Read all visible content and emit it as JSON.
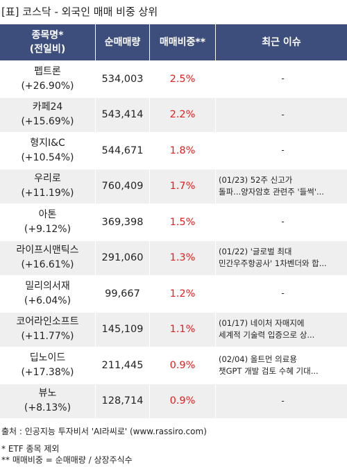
{
  "title": "[표] 코스닥 - 외국인 매매 비중 상위",
  "headers": {
    "name_line1": "종목명*",
    "name_line2": "(전일비)",
    "volume": "순매매량",
    "ratio": "매매비중**",
    "issue": "최근 이슈"
  },
  "rows": [
    {
      "name": "펩트론",
      "change": "(+26.90%)",
      "volume": "534,003",
      "ratio": "2.5%",
      "issue_line1": "-",
      "issue_line2": ""
    },
    {
      "name": "카페24",
      "change": "(+15.69%)",
      "volume": "543,414",
      "ratio": "2.2%",
      "issue_line1": "-",
      "issue_line2": ""
    },
    {
      "name": "형지I&C",
      "change": "(+10.54%)",
      "volume": "544,671",
      "ratio": "1.8%",
      "issue_line1": "-",
      "issue_line2": ""
    },
    {
      "name": "우리로",
      "change": "(+11.19%)",
      "volume": "760,409",
      "ratio": "1.7%",
      "issue_line1": "(01/23) 52주 신고가",
      "issue_line2": "돌파...양자암호 관련주 '들썩'..."
    },
    {
      "name": "아톤",
      "change": "(+9.12%)",
      "volume": "369,398",
      "ratio": "1.5%",
      "issue_line1": "-",
      "issue_line2": ""
    },
    {
      "name": "라이프시맨틱스",
      "change": "(+16.61%)",
      "volume": "291,060",
      "ratio": "1.3%",
      "issue_line1": "(01/22) '글로벌 최대",
      "issue_line2": "민간우주항공사' 1차벤더와 합..."
    },
    {
      "name": "밀리의서재",
      "change": "(+6.04%)",
      "volume": "99,667",
      "ratio": "1.2%",
      "issue_line1": "-",
      "issue_line2": ""
    },
    {
      "name": "코어라인소프트",
      "change": "(+11.77%)",
      "volume": "145,109",
      "ratio": "1.1%",
      "issue_line1": "(01/17) 네이처 자매지에",
      "issue_line2": "세계적 기술력 입증으로 상..."
    },
    {
      "name": "딥노이드",
      "change": "(+17.38%)",
      "volume": "211,445",
      "ratio": "0.9%",
      "issue_line1": "(02/04) 올트먼 의료용",
      "issue_line2": "챗GPT 개발 검토 수혜 기대..."
    },
    {
      "name": "뷰노",
      "change": "(+8.13%)",
      "volume": "128,714",
      "ratio": "0.9%",
      "issue_line1": "-",
      "issue_line2": ""
    }
  ],
  "footer": {
    "source": "출처 : 인공지능 투자비서 'AI라씨로' (www.rassiro.com)",
    "note1": "* ETF 종목 제외",
    "note2": "** 매매비중 = 순매매량 / 상장주식수"
  },
  "colors": {
    "header_bg": "#3d4e7c",
    "ratio_text": "#e02020",
    "stripe": "#efefef"
  }
}
